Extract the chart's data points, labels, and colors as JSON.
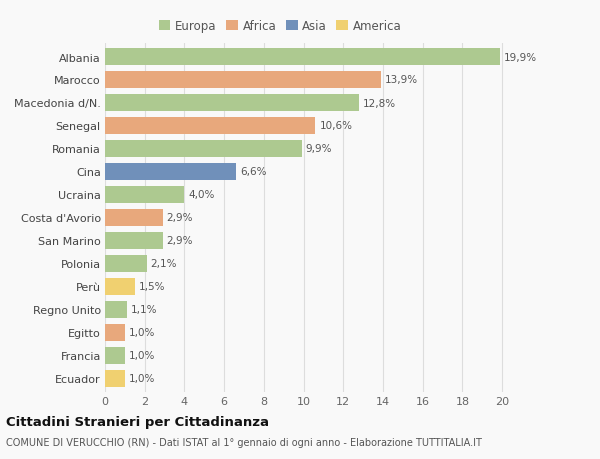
{
  "categories": [
    "Albania",
    "Marocco",
    "Macedonia d/N.",
    "Senegal",
    "Romania",
    "Cina",
    "Ucraina",
    "Costa d'Avorio",
    "San Marino",
    "Polonia",
    "Perù",
    "Regno Unito",
    "Egitto",
    "Francia",
    "Ecuador"
  ],
  "values": [
    19.9,
    13.9,
    12.8,
    10.6,
    9.9,
    6.6,
    4.0,
    2.9,
    2.9,
    2.1,
    1.5,
    1.1,
    1.0,
    1.0,
    1.0
  ],
  "labels": [
    "19,9%",
    "13,9%",
    "12,8%",
    "10,6%",
    "9,9%",
    "6,6%",
    "4,0%",
    "2,9%",
    "2,9%",
    "2,1%",
    "1,5%",
    "1,1%",
    "1,0%",
    "1,0%",
    "1,0%"
  ],
  "continents": [
    "Europa",
    "Africa",
    "Europa",
    "Africa",
    "Europa",
    "Asia",
    "Europa",
    "Africa",
    "Europa",
    "Europa",
    "America",
    "Europa",
    "Africa",
    "Europa",
    "America"
  ],
  "colors": {
    "Europa": "#adc990",
    "Africa": "#e8a87c",
    "Asia": "#7090ba",
    "America": "#f0d070"
  },
  "xlim": [
    0,
    21
  ],
  "xticks": [
    0,
    2,
    4,
    6,
    8,
    10,
    12,
    14,
    16,
    18,
    20
  ],
  "title": "Cittadini Stranieri per Cittadinanza",
  "subtitle": "COMUNE DI VERUCCHIO (RN) - Dati ISTAT al 1° gennaio di ogni anno - Elaborazione TUTTITALIA.IT",
  "bg_color": "#f9f9f9",
  "grid_color": "#dddddd",
  "legend_order": [
    "Europa",
    "Africa",
    "Asia",
    "America"
  ],
  "bar_height": 0.72
}
